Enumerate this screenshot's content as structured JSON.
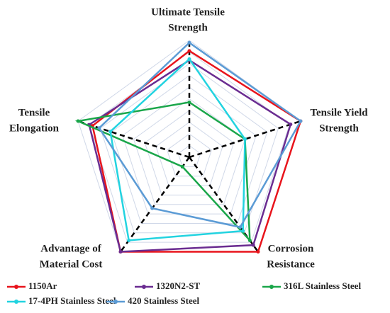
{
  "chart_data": {
    "type": "radar",
    "categories": [
      [
        "Ultimate Tensile",
        "Strength"
      ],
      [
        "Tensile Yield",
        "Strength"
      ],
      [
        "Corrosion",
        "Resistance"
      ],
      [
        "Advantage of",
        "Material Cost"
      ],
      [
        "Tensile",
        "Elongation"
      ]
    ],
    "rlim": [
      0,
      1
    ],
    "rticks": [
      0.1,
      0.2,
      0.3,
      0.4,
      0.5,
      0.6,
      0.7,
      0.8,
      0.9,
      1
    ],
    "grid": true,
    "legend": "bottom",
    "series": [
      {
        "name": "1150Ar",
        "color": "#e8141c",
        "values": [
          0.91,
          1.0,
          1.0,
          1.0,
          0.87
        ]
      },
      {
        "name": "1320N2-ST",
        "color": "#6a2c91",
        "values": [
          0.83,
          0.91,
          0.93,
          1.0,
          0.9
        ]
      },
      {
        "name": "316L Stainless Steel",
        "color": "#1aa64a",
        "values": [
          0.47,
          0.5,
          0.88,
          0.1,
          1.0
        ]
      },
      {
        "name": "17-4PH Stainless Steel",
        "color": "#22d3e0",
        "values": [
          0.84,
          0.5,
          0.78,
          0.88,
          0.71
        ]
      },
      {
        "name": "420 Stainless Steel",
        "color": "#5b9bd5",
        "values": [
          0.98,
          1.0,
          0.74,
          0.54,
          0.81
        ]
      }
    ]
  }
}
